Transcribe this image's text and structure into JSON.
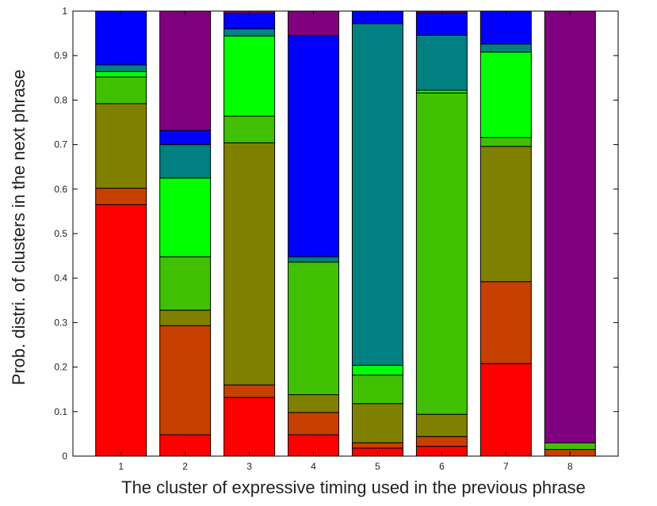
{
  "chart_data": {
    "type": "bar",
    "stacked": true,
    "title": "",
    "xlabel": "The cluster of expressive timing used in the previous phrase",
    "ylabel": "Prob. distri. of clusters in the next phrase",
    "ylim": [
      0,
      1
    ],
    "yticks": [
      "0",
      "0.1",
      "0.2",
      "0.3",
      "0.4",
      "0.5",
      "0.6",
      "0.7",
      "0.8",
      "0.9",
      "1"
    ],
    "categories": [
      "1",
      "2",
      "3",
      "4",
      "5",
      "6",
      "7",
      "8"
    ],
    "grid": false,
    "legend": "none",
    "series": [
      {
        "color": "#ff0000",
        "values": [
          0.565,
          0.048,
          0.132,
          0.048,
          0.018,
          0.022,
          0.208,
          0.0
        ]
      },
      {
        "color": "#c84000",
        "values": [
          0.037,
          0.245,
          0.028,
          0.05,
          0.012,
          0.022,
          0.184,
          0.015
        ]
      },
      {
        "color": "#808000",
        "values": [
          0.19,
          0.035,
          0.544,
          0.04,
          0.088,
          0.05,
          0.304,
          0.0
        ]
      },
      {
        "color": "#40c000",
        "values": [
          0.06,
          0.12,
          0.06,
          0.298,
          0.064,
          0.722,
          0.02,
          0.015
        ]
      },
      {
        "color": "#00ff00",
        "values": [
          0.012,
          0.177,
          0.18,
          0.0,
          0.022,
          0.006,
          0.192,
          0.0
        ]
      },
      {
        "color": "#008080",
        "values": [
          0.015,
          0.075,
          0.016,
          0.012,
          0.768,
          0.124,
          0.018,
          0.0
        ]
      },
      {
        "color": "#0000ff",
        "values": [
          0.121,
          0.032,
          0.035,
          0.497,
          0.028,
          0.05,
          0.074,
          0.0
        ]
      },
      {
        "color": "#800080",
        "values": [
          0.0,
          0.268,
          0.005,
          0.055,
          0.0,
          0.004,
          0.0,
          0.97
        ]
      }
    ]
  }
}
